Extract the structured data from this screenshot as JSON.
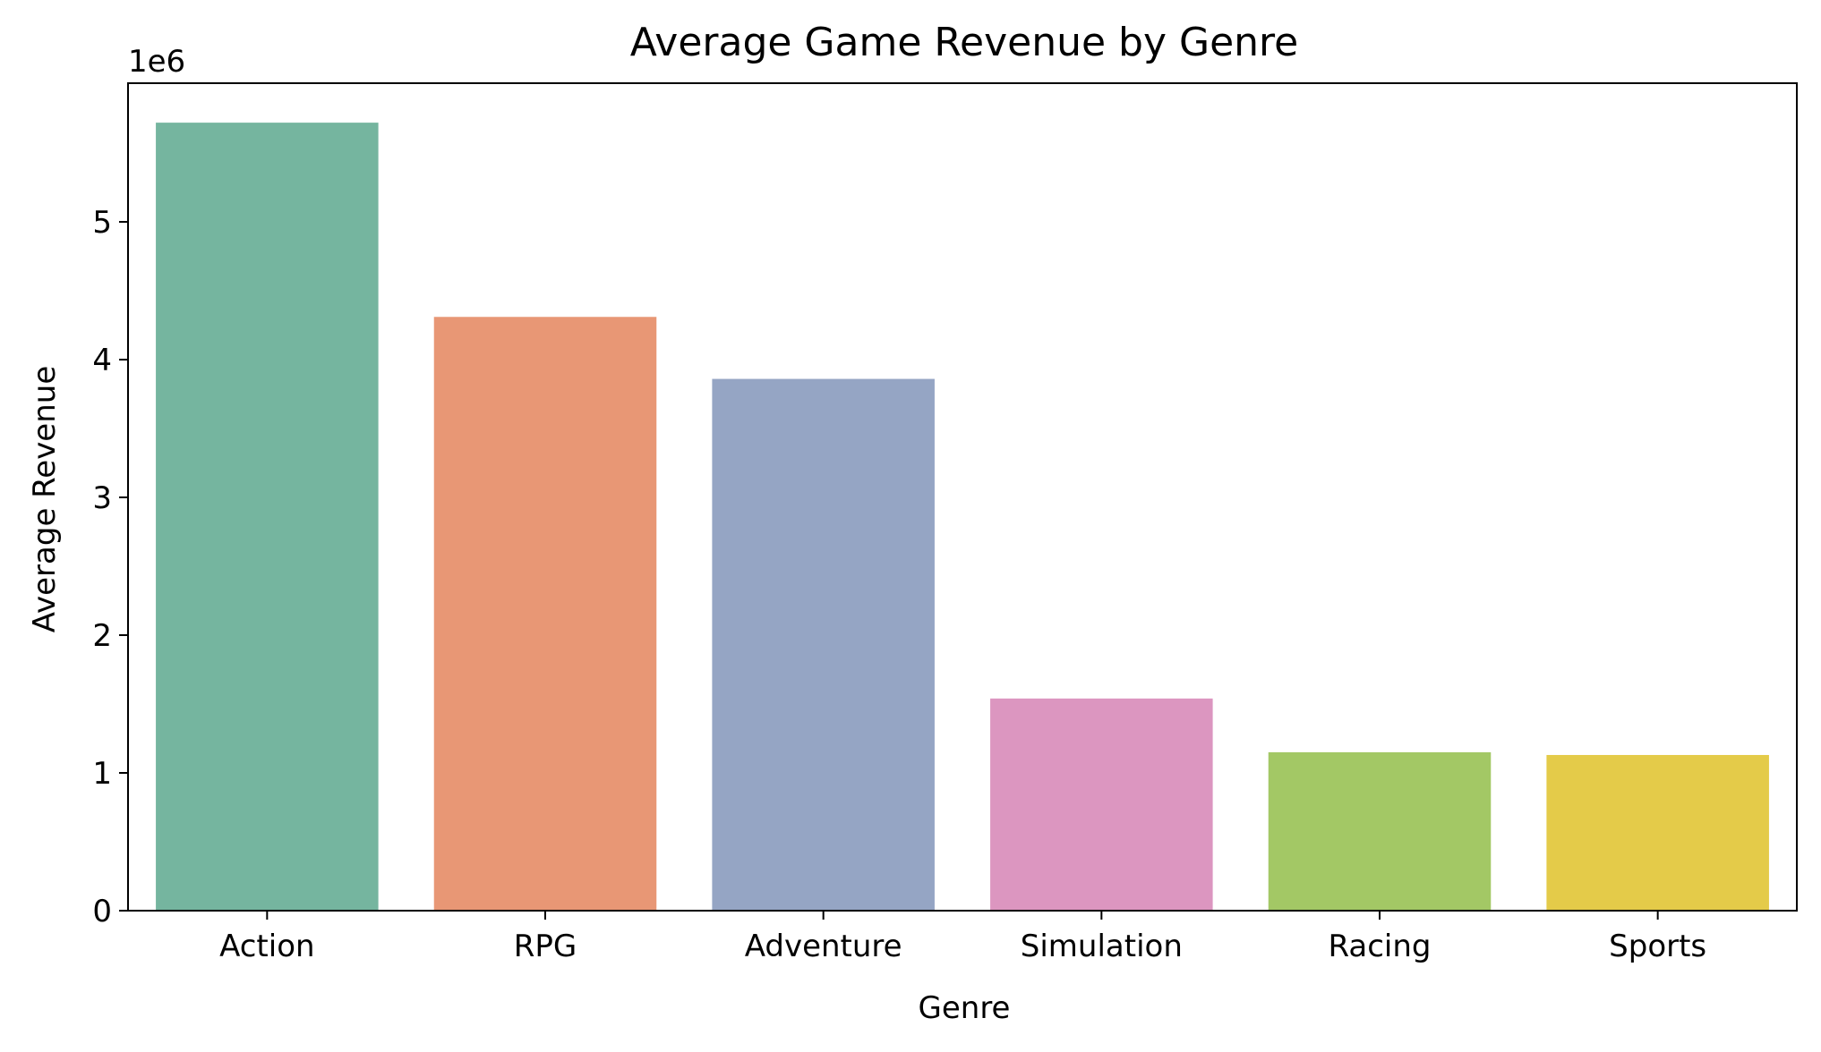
{
  "chart_data": {
    "type": "bar",
    "title": "Average Game Revenue by Genre",
    "xlabel": "Genre",
    "ylabel": "Average Revenue",
    "offset_label": "1e6",
    "categories": [
      "Action",
      "RPG",
      "Adventure",
      "Simulation",
      "Racing",
      "Sports"
    ],
    "values": [
      5.72,
      4.31,
      3.86,
      1.54,
      1.15,
      1.13
    ],
    "colors": [
      "#75b59f",
      "#e89775",
      "#95a5c4",
      "#dc96c0",
      "#a3c865",
      "#e4cb49"
    ],
    "yticks": [
      "0",
      "1",
      "2",
      "3",
      "4",
      "5"
    ],
    "ylim": [
      0,
      6.0
    ],
    "grid": false,
    "legend": "none"
  }
}
